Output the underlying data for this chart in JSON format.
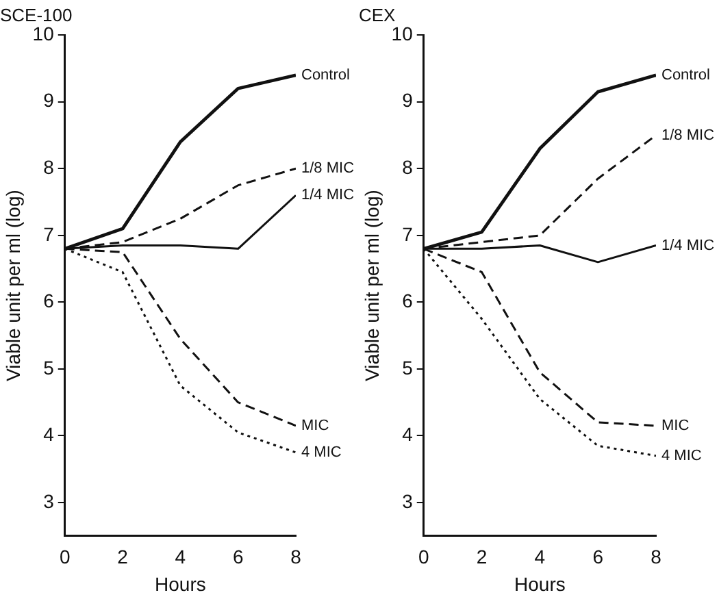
{
  "chart_data": [
    {
      "type": "line",
      "title": "SCE-100",
      "xlabel": "Hours",
      "ylabel": "Viable unit per ml (log)",
      "x": [
        0,
        2,
        4,
        6,
        8
      ],
      "xlim": [
        0,
        8
      ],
      "xticks": [
        0,
        2,
        4,
        6,
        8
      ],
      "ylim": [
        2.5,
        10
      ],
      "yticks": [
        3,
        4,
        5,
        6,
        7,
        8,
        9,
        10
      ],
      "grid": false,
      "legend": false,
      "marker": "none",
      "series": [
        {
          "name": "Control",
          "color": "#111111",
          "line_style": "solid",
          "values": [
            6.8,
            7.1,
            8.4,
            9.2,
            9.4
          ]
        },
        {
          "name": "1/8 MIC",
          "color": "#111111",
          "line_style": "dashed",
          "values": [
            6.8,
            6.9,
            7.25,
            7.75,
            8.0
          ]
        },
        {
          "name": "1/4 MIC",
          "color": "#111111",
          "line_style": "solid",
          "values": [
            6.8,
            6.85,
            6.85,
            6.8,
            7.6
          ]
        },
        {
          "name": "MIC",
          "color": "#111111",
          "line_style": "dashed",
          "values": [
            6.8,
            6.75,
            5.45,
            4.5,
            4.15
          ]
        },
        {
          "name": "4 MIC",
          "color": "#111111",
          "line_style": "dotted",
          "values": [
            6.8,
            6.45,
            4.75,
            4.05,
            3.75
          ]
        }
      ]
    },
    {
      "type": "line",
      "title": "CEX",
      "xlabel": "Hours",
      "ylabel": "Viable unit per ml (log)",
      "x": [
        0,
        2,
        4,
        6,
        8
      ],
      "xlim": [
        0,
        8
      ],
      "xticks": [
        0,
        2,
        4,
        6,
        8
      ],
      "ylim": [
        2.5,
        10
      ],
      "yticks": [
        3,
        4,
        5,
        6,
        7,
        8,
        9,
        10
      ],
      "grid": false,
      "legend": false,
      "marker": "none",
      "series": [
        {
          "name": "Control",
          "color": "#111111",
          "line_style": "solid",
          "values": [
            6.8,
            7.05,
            8.3,
            9.15,
            9.4
          ]
        },
        {
          "name": "1/8 MIC",
          "color": "#111111",
          "line_style": "dashed",
          "values": [
            6.8,
            6.9,
            7.0,
            7.85,
            8.5
          ]
        },
        {
          "name": "1/4 MIC",
          "color": "#111111",
          "line_style": "solid",
          "values": [
            6.8,
            6.8,
            6.85,
            6.6,
            6.85
          ]
        },
        {
          "name": "MIC",
          "color": "#111111",
          "line_style": "dashed",
          "values": [
            6.8,
            6.45,
            4.95,
            4.2,
            4.15
          ]
        },
        {
          "name": "4 MIC",
          "color": "#111111",
          "line_style": "dotted",
          "values": [
            6.8,
            5.75,
            4.55,
            3.85,
            3.7
          ]
        }
      ]
    }
  ]
}
